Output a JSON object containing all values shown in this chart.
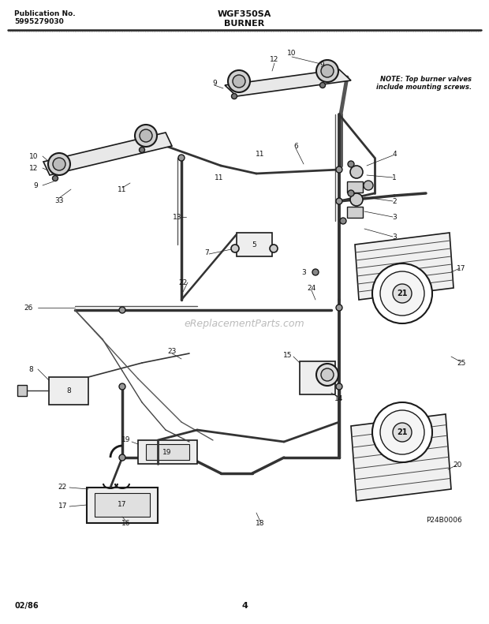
{
  "title_left_line1": "Publication No.",
  "title_left_line2": "5995279030",
  "title_center": "WGF350SA",
  "title_section": "BURNER",
  "note_text": "NOTE: Top burner valves\ninclude mounting screws.",
  "footer_left": "02/86",
  "footer_center": "4",
  "part_num": "P24B0006",
  "bg_color": "#ffffff",
  "lc": "#1a1a1a",
  "tc": "#111111",
  "fig_width": 6.2,
  "fig_height": 7.91,
  "dpi": 100
}
